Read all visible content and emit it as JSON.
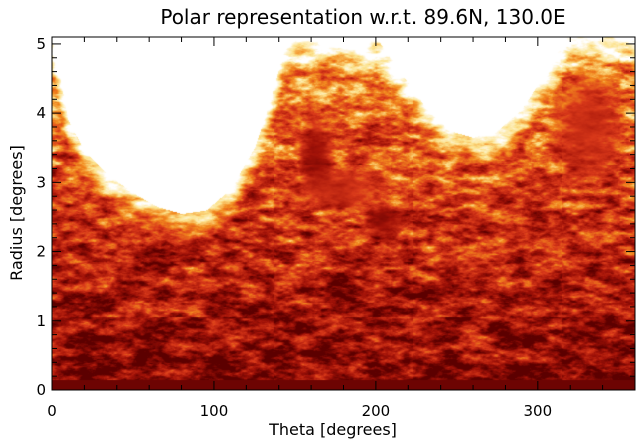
{
  "chart_data": {
    "type": "heatmap",
    "title": "Polar representation w.r.t. 89.6N, 130.0E",
    "xlabel": "Theta [degrees]",
    "ylabel": "Radius [degrees]",
    "xlim": [
      0,
      360
    ],
    "ylim": [
      0,
      5.1
    ],
    "x_ticks": [
      0,
      100,
      200,
      300
    ],
    "x_tick_labels": [
      "0",
      "100",
      "200",
      "300"
    ],
    "y_ticks": [
      0,
      1,
      2,
      3,
      4,
      5
    ],
    "y_tick_labels": [
      "0",
      "1",
      "2",
      "3",
      "4",
      "5"
    ],
    "colormap": [
      "#ffffff",
      "#fce28c",
      "#f28a1e",
      "#d9391a",
      "#a11208",
      "#5c0000"
    ],
    "background_color": "#ffffff",
    "data_coverage_upper_edge": {
      "theta": [
        0,
        10,
        20,
        35,
        50,
        65,
        80,
        95,
        110,
        125,
        135,
        142,
        150,
        160,
        175,
        185,
        192,
        200,
        215,
        230,
        245,
        260,
        275,
        290,
        305,
        318,
        325,
        332,
        345,
        360
      ],
      "radius": [
        5.1,
        3.9,
        3.45,
        3.1,
        2.85,
        2.65,
        2.55,
        2.6,
        2.9,
        3.5,
        4.2,
        4.85,
        5.1,
        5.1,
        5.1,
        5.05,
        4.95,
        5.1,
        4.6,
        4.1,
        3.75,
        3.65,
        3.75,
        4.05,
        4.6,
        5.1,
        5.1,
        5.1,
        5.1,
        5.1
      ]
    },
    "features": [
      {
        "theta": 163,
        "radius": 3.4,
        "size": [
          12,
          0.65
        ],
        "intensity": 0.9
      },
      {
        "theta": 205,
        "radius": 2.45,
        "size": [
          13,
          0.3
        ],
        "intensity": 0.88
      },
      {
        "theta": 178,
        "radius": 2.9,
        "size": [
          30,
          0.35
        ],
        "intensity": 0.7
      },
      {
        "theta": 20,
        "radius": 3.7,
        "size": [
          6,
          0.12
        ],
        "intensity": 0.65
      },
      {
        "theta": 330,
        "radius": 3.8,
        "size": [
          25,
          0.9
        ],
        "intensity": 0.7
      }
    ]
  },
  "colors": {
    "axes": "#000000",
    "background": "#ffffff"
  }
}
